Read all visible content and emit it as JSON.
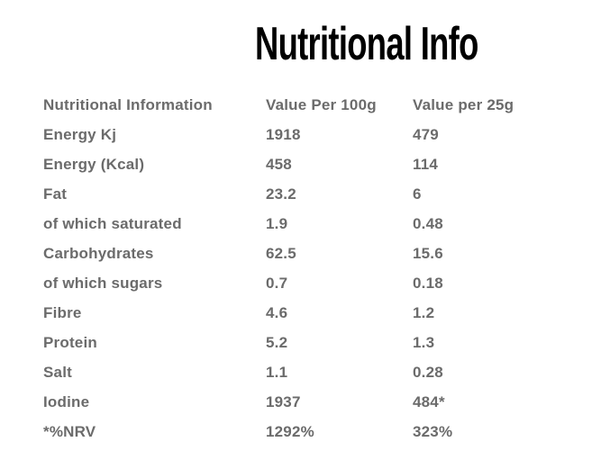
{
  "title": "Nutritional Info",
  "table": {
    "headers": {
      "label": "Nutritional Information",
      "per100g": "Value Per 100g",
      "per25g": "Value per 25g"
    },
    "rows": [
      {
        "label": "Energy Kj",
        "per100g": "1918",
        "per25g": "479"
      },
      {
        "label": "Energy (Kcal)",
        "per100g": "458",
        "per25g": "114"
      },
      {
        "label": "Fat",
        "per100g": "23.2",
        "per25g": "6"
      },
      {
        "label": "of which saturated",
        "per100g": "1.9",
        "per25g": "0.48"
      },
      {
        "label": "Carbohydrates",
        "per100g": "62.5",
        "per25g": "15.6"
      },
      {
        "label": "of which sugars",
        "per100g": "0.7",
        "per25g": "0.18"
      },
      {
        "label": "Fibre",
        "per100g": "4.6",
        "per25g": "1.2"
      },
      {
        "label": "Protein",
        "per100g": "5.2",
        "per25g": "1.3"
      },
      {
        "label": "Salt",
        "per100g": "1.1",
        "per25g": "0.28"
      },
      {
        "label": "Iodine",
        "per100g": "1937",
        "per25g": "484*"
      },
      {
        "label": "*%NRV",
        "per100g": "1292%",
        "per25g": "323%"
      }
    ]
  },
  "colors": {
    "background": "#ffffff",
    "title_text": "#000000",
    "table_text": "#6b6b6b"
  }
}
